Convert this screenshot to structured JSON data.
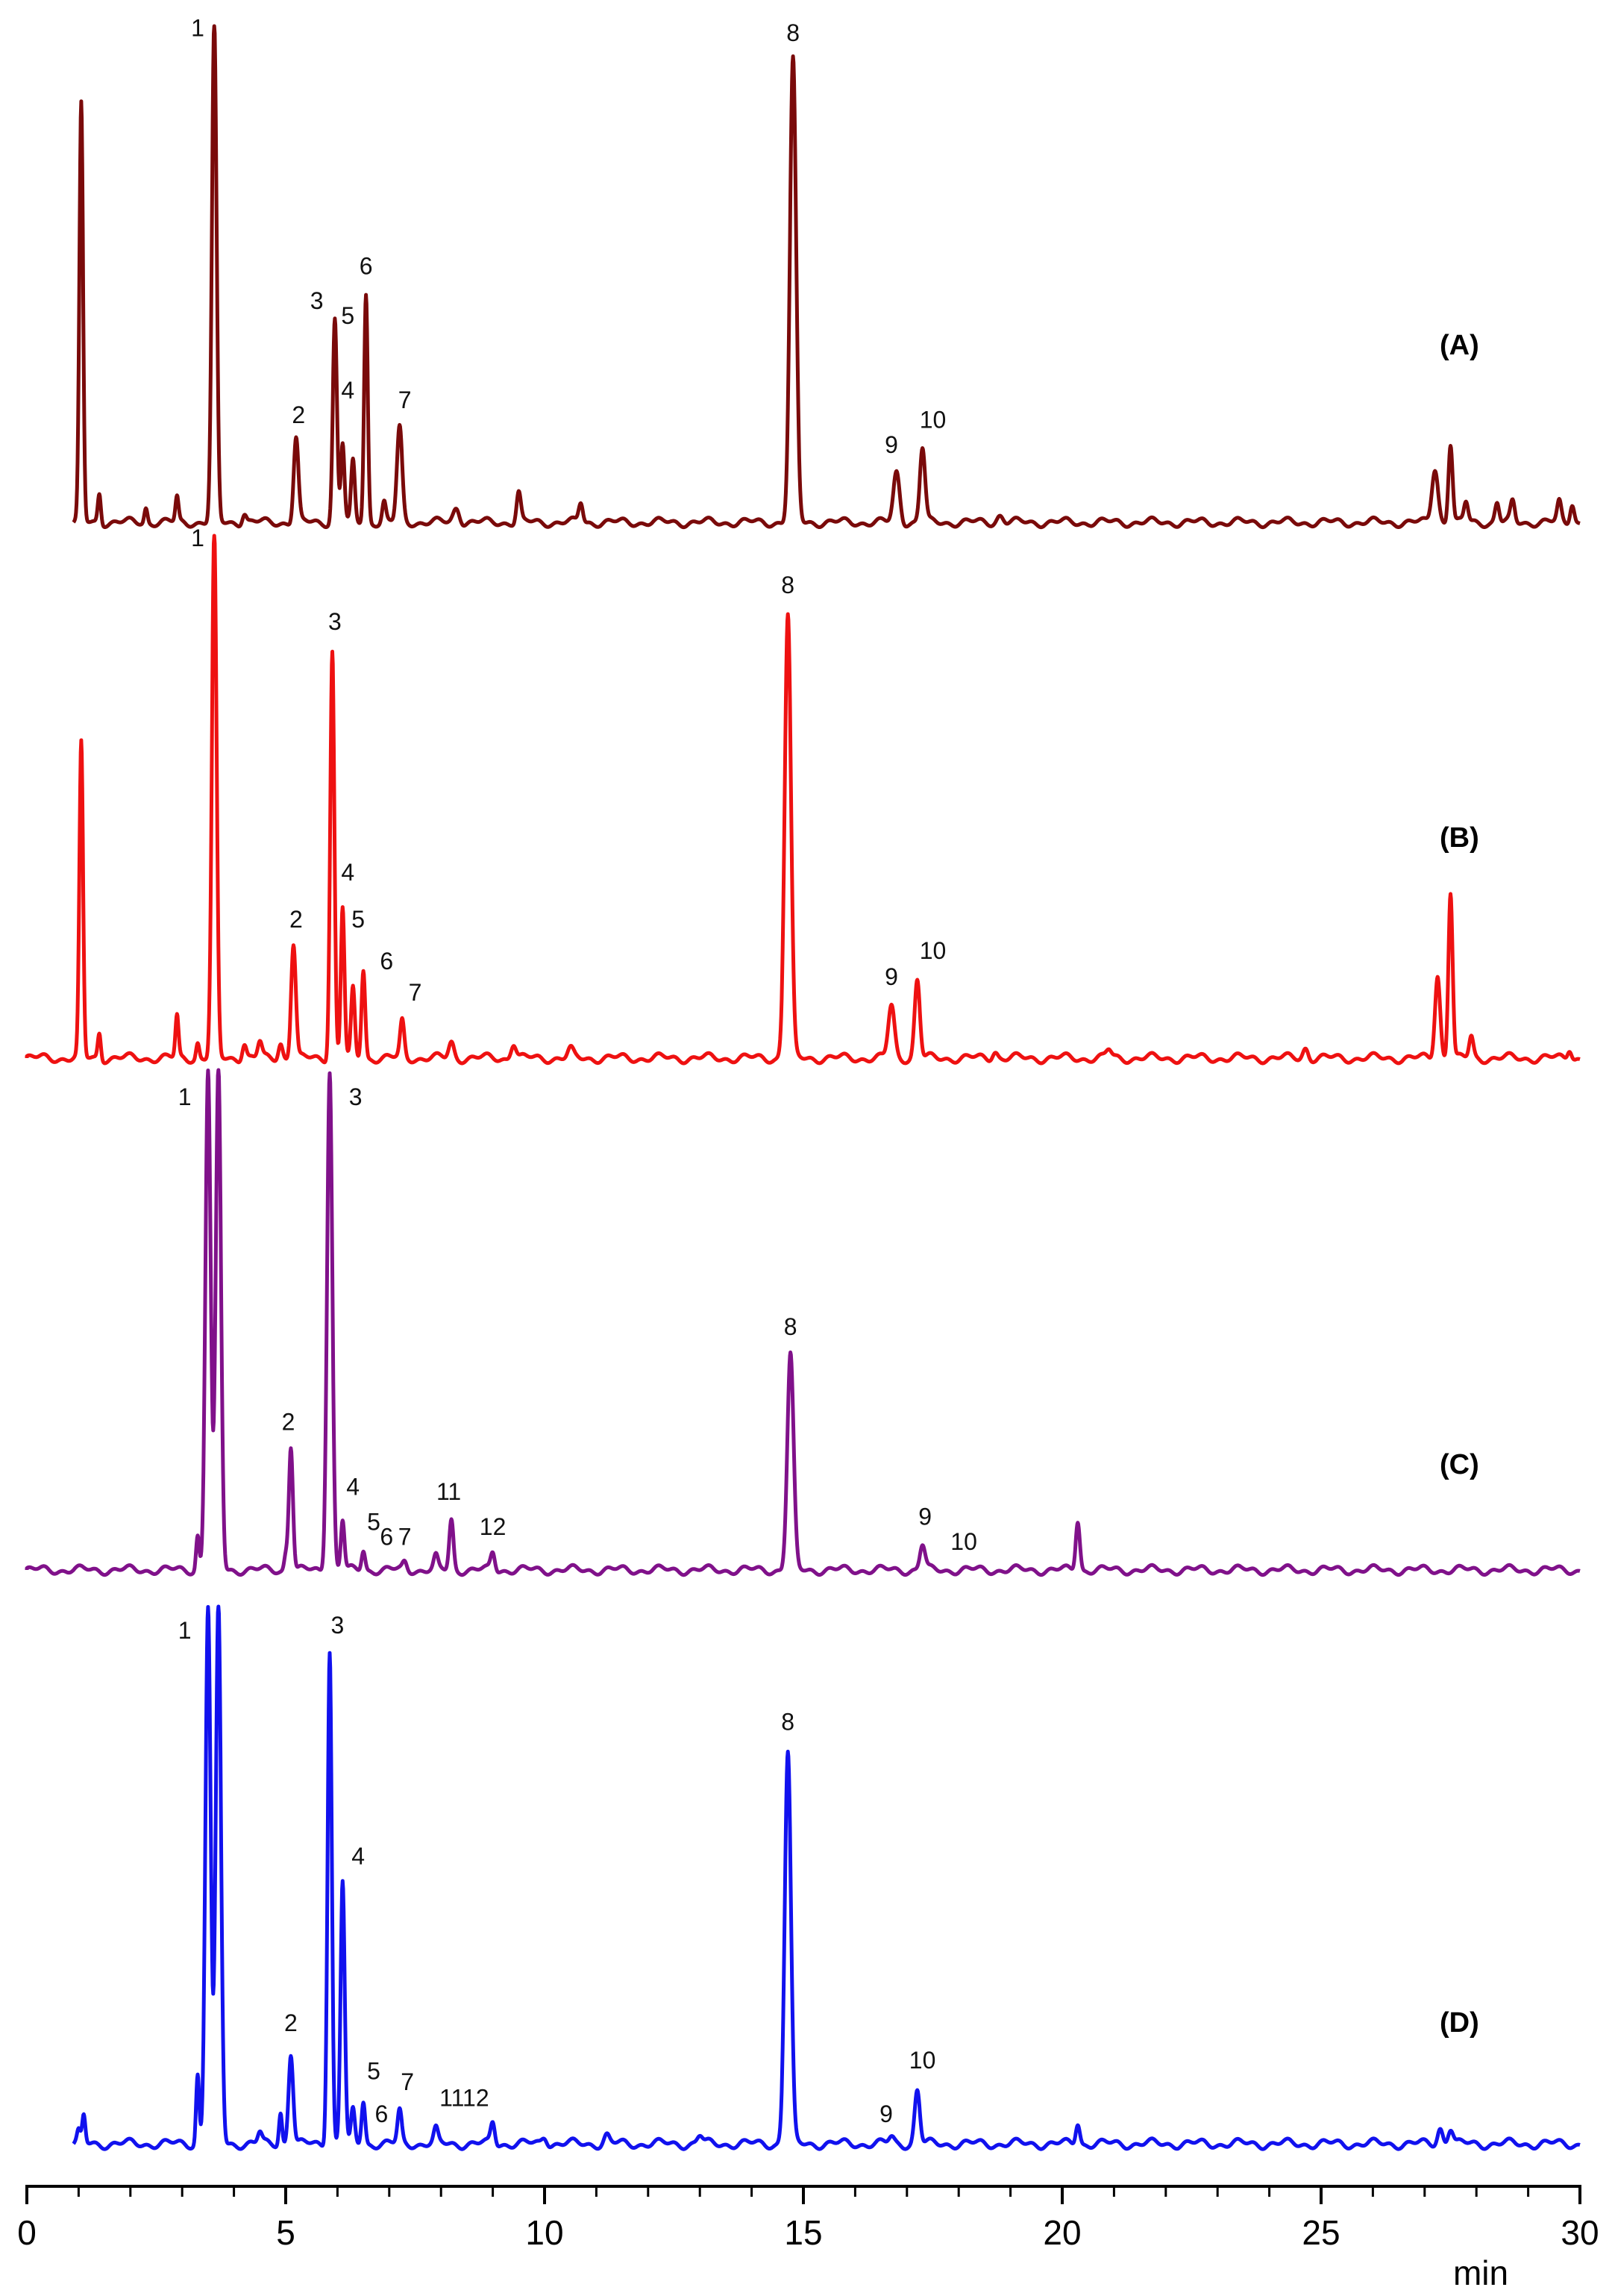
{
  "chart_data": {
    "type": "line",
    "xlabel": "min",
    "xlim": [
      0,
      30
    ],
    "x_ticks": [
      0,
      5,
      10,
      15,
      20,
      25,
      30
    ],
    "grid": false,
    "series": [
      {
        "name": "(A)",
        "color": "#7a0a0a",
        "peaks": [
          {
            "rt": 1.05,
            "h": 0.84,
            "w": 0.035
          },
          {
            "rt": 1.4,
            "h": 0.06,
            "w": 0.03
          },
          {
            "rt": 2.3,
            "h": 0.03,
            "w": 0.03
          },
          {
            "rt": 2.9,
            "h": 0.05,
            "w": 0.03
          },
          {
            "rt": 3.62,
            "h": 1.0,
            "w": 0.045
          },
          {
            "rt": 4.2,
            "h": 0.02,
            "w": 0.04
          },
          {
            "rt": 5.2,
            "h": 0.17,
            "w": 0.045
          },
          {
            "rt": 5.95,
            "h": 0.41,
            "w": 0.04
          },
          {
            "rt": 6.1,
            "h": 0.16,
            "w": 0.035
          },
          {
            "rt": 6.3,
            "h": 0.12,
            "w": 0.035
          },
          {
            "rt": 6.55,
            "h": 0.46,
            "w": 0.035
          },
          {
            "rt": 6.9,
            "h": 0.04,
            "w": 0.035
          },
          {
            "rt": 7.2,
            "h": 0.19,
            "w": 0.05
          },
          {
            "rt": 8.3,
            "h": 0.03,
            "w": 0.06
          },
          {
            "rt": 9.5,
            "h": 0.06,
            "w": 0.04
          },
          {
            "rt": 10.7,
            "h": 0.04,
            "w": 0.04
          },
          {
            "rt": 14.8,
            "h": 0.93,
            "w": 0.06
          },
          {
            "rt": 16.8,
            "h": 0.1,
            "w": 0.06
          },
          {
            "rt": 17.3,
            "h": 0.15,
            "w": 0.05
          },
          {
            "rt": 18.8,
            "h": 0.015,
            "w": 0.06
          },
          {
            "rt": 27.2,
            "h": 0.11,
            "w": 0.06
          },
          {
            "rt": 27.5,
            "h": 0.16,
            "w": 0.04
          },
          {
            "rt": 27.8,
            "h": 0.04,
            "w": 0.04
          },
          {
            "rt": 28.4,
            "h": 0.04,
            "w": 0.04
          },
          {
            "rt": 28.7,
            "h": 0.04,
            "w": 0.04
          },
          {
            "rt": 29.6,
            "h": 0.04,
            "w": 0.04
          },
          {
            "rt": 29.85,
            "h": 0.04,
            "w": 0.04
          }
        ],
        "labels": [
          {
            "text": "1",
            "rt": 3.3,
            "h": 0.98
          },
          {
            "text": "2",
            "rt": 5.25,
            "h": 0.2
          },
          {
            "text": "3",
            "rt": 5.6,
            "h": 0.43
          },
          {
            "text": "5",
            "rt": 6.2,
            "h": 0.4
          },
          {
            "text": "6",
            "rt": 6.55,
            "h": 0.5
          },
          {
            "text": "4",
            "rt": 6.2,
            "h": 0.25
          },
          {
            "text": "7",
            "rt": 7.3,
            "h": 0.23
          },
          {
            "text": "8",
            "rt": 14.8,
            "h": 0.97
          },
          {
            "text": "9",
            "rt": 16.7,
            "h": 0.14
          },
          {
            "text": "10",
            "rt": 17.5,
            "h": 0.19
          }
        ],
        "panel_label": "(A)"
      },
      {
        "name": "(B)",
        "color": "#ee1111",
        "peaks": [
          {
            "rt": 1.05,
            "h": 0.6,
            "w": 0.035
          },
          {
            "rt": 1.4,
            "h": 0.05,
            "w": 0.03
          },
          {
            "rt": 2.9,
            "h": 0.08,
            "w": 0.03
          },
          {
            "rt": 3.3,
            "h": 0.03,
            "w": 0.03
          },
          {
            "rt": 3.62,
            "h": 1.0,
            "w": 0.045
          },
          {
            "rt": 4.2,
            "h": 0.03,
            "w": 0.04
          },
          {
            "rt": 4.5,
            "h": 0.03,
            "w": 0.04
          },
          {
            "rt": 4.9,
            "h": 0.03,
            "w": 0.04
          },
          {
            "rt": 5.15,
            "h": 0.22,
            "w": 0.045
          },
          {
            "rt": 5.9,
            "h": 0.78,
            "w": 0.04
          },
          {
            "rt": 6.1,
            "h": 0.29,
            "w": 0.035
          },
          {
            "rt": 6.3,
            "h": 0.13,
            "w": 0.035
          },
          {
            "rt": 6.5,
            "h": 0.17,
            "w": 0.035
          },
          {
            "rt": 7.25,
            "h": 0.07,
            "w": 0.04
          },
          {
            "rt": 8.2,
            "h": 0.03,
            "w": 0.05
          },
          {
            "rt": 9.4,
            "h": 0.03,
            "w": 0.05
          },
          {
            "rt": 10.5,
            "h": 0.015,
            "w": 0.05
          },
          {
            "rt": 14.7,
            "h": 0.85,
            "w": 0.06
          },
          {
            "rt": 16.7,
            "h": 0.1,
            "w": 0.06
          },
          {
            "rt": 17.2,
            "h": 0.15,
            "w": 0.05
          },
          {
            "rt": 18.7,
            "h": 0.015,
            "w": 0.05
          },
          {
            "rt": 20.9,
            "h": 0.015,
            "w": 0.05
          },
          {
            "rt": 24.7,
            "h": 0.02,
            "w": 0.05
          },
          {
            "rt": 27.25,
            "h": 0.16,
            "w": 0.05
          },
          {
            "rt": 27.5,
            "h": 0.32,
            "w": 0.04
          },
          {
            "rt": 27.9,
            "h": 0.04,
            "w": 0.04
          },
          {
            "rt": 29.8,
            "h": 0.02,
            "w": 0.04
          }
        ],
        "labels": [
          {
            "text": "1",
            "rt": 3.3,
            "h": 0.98
          },
          {
            "text": "3",
            "rt": 5.95,
            "h": 0.82
          },
          {
            "text": "2",
            "rt": 5.2,
            "h": 0.25
          },
          {
            "text": "4",
            "rt": 6.2,
            "h": 0.34
          },
          {
            "text": "5",
            "rt": 6.4,
            "h": 0.25
          },
          {
            "text": "6",
            "rt": 6.95,
            "h": 0.17
          },
          {
            "text": "7",
            "rt": 7.5,
            "h": 0.11
          },
          {
            "text": "8",
            "rt": 14.7,
            "h": 0.89
          },
          {
            "text": "9",
            "rt": 16.7,
            "h": 0.14
          },
          {
            "text": "10",
            "rt": 17.5,
            "h": 0.19
          }
        ],
        "panel_label": "(B)"
      },
      {
        "name": "(C)",
        "color": "#80118a",
        "peaks": [
          {
            "rt": 3.3,
            "h": 0.07,
            "w": 0.03
          },
          {
            "rt": 3.5,
            "h": 1.0,
            "w": 0.05
          },
          {
            "rt": 3.7,
            "h": 1.0,
            "w": 0.05
          },
          {
            "rt": 5.0,
            "h": 0.03,
            "w": 0.03
          },
          {
            "rt": 5.1,
            "h": 0.25,
            "w": 0.04
          },
          {
            "rt": 5.85,
            "h": 1.0,
            "w": 0.05
          },
          {
            "rt": 6.1,
            "h": 0.1,
            "w": 0.035
          },
          {
            "rt": 6.5,
            "h": 0.04,
            "w": 0.035
          },
          {
            "rt": 7.3,
            "h": 0.015,
            "w": 0.04
          },
          {
            "rt": 7.9,
            "h": 0.025,
            "w": 0.04
          },
          {
            "rt": 8.2,
            "h": 0.1,
            "w": 0.04
          },
          {
            "rt": 9.0,
            "h": 0.035,
            "w": 0.04
          },
          {
            "rt": 14.75,
            "h": 0.43,
            "w": 0.06
          },
          {
            "rt": 17.3,
            "h": 0.05,
            "w": 0.05
          },
          {
            "rt": 20.3,
            "h": 0.1,
            "w": 0.04
          }
        ],
        "labels": [
          {
            "text": "1",
            "rt": 3.05,
            "h": 0.93
          },
          {
            "text": "3",
            "rt": 6.35,
            "h": 0.93
          },
          {
            "text": "2",
            "rt": 5.05,
            "h": 0.28
          },
          {
            "text": "4",
            "rt": 6.3,
            "h": 0.15
          },
          {
            "text": "5",
            "rt": 6.7,
            "h": 0.08
          },
          {
            "text": "6",
            "rt": 6.95,
            "h": 0.05
          },
          {
            "text": "7",
            "rt": 7.3,
            "h": 0.05
          },
          {
            "text": "11",
            "rt": 8.15,
            "h": 0.14
          },
          {
            "text": "12",
            "rt": 9.0,
            "h": 0.07
          },
          {
            "text": "8",
            "rt": 14.75,
            "h": 0.47
          },
          {
            "text": "9",
            "rt": 17.35,
            "h": 0.09
          },
          {
            "text": "10",
            "rt": 18.1,
            "h": 0.04
          }
        ],
        "panel_label": "(C)"
      },
      {
        "name": "(D)",
        "color": "#1111ee",
        "peaks": [
          {
            "rt": 1.0,
            "h": 0.02,
            "w": 0.03
          },
          {
            "rt": 1.1,
            "h": 0.05,
            "w": 0.03
          },
          {
            "rt": 3.3,
            "h": 0.13,
            "w": 0.03
          },
          {
            "rt": 3.5,
            "h": 1.0,
            "w": 0.05
          },
          {
            "rt": 3.7,
            "h": 1.0,
            "w": 0.05
          },
          {
            "rt": 4.5,
            "h": 0.02,
            "w": 0.04
          },
          {
            "rt": 4.9,
            "h": 0.06,
            "w": 0.03
          },
          {
            "rt": 5.1,
            "h": 0.17,
            "w": 0.045
          },
          {
            "rt": 5.85,
            "h": 0.92,
            "w": 0.04
          },
          {
            "rt": 6.1,
            "h": 0.49,
            "w": 0.04
          },
          {
            "rt": 6.3,
            "h": 0.06,
            "w": 0.035
          },
          {
            "rt": 6.5,
            "h": 0.08,
            "w": 0.035
          },
          {
            "rt": 7.2,
            "h": 0.06,
            "w": 0.04
          },
          {
            "rt": 7.9,
            "h": 0.025,
            "w": 0.04
          },
          {
            "rt": 9.0,
            "h": 0.04,
            "w": 0.04
          },
          {
            "rt": 10.0,
            "h": 0.015,
            "w": 0.05
          },
          {
            "rt": 11.2,
            "h": 0.015,
            "w": 0.05
          },
          {
            "rt": 13.0,
            "h": 0.015,
            "w": 0.05
          },
          {
            "rt": 14.7,
            "h": 0.73,
            "w": 0.06
          },
          {
            "rt": 16.7,
            "h": 0.012,
            "w": 0.05
          },
          {
            "rt": 17.2,
            "h": 0.1,
            "w": 0.05
          },
          {
            "rt": 20.3,
            "h": 0.04,
            "w": 0.04
          },
          {
            "rt": 27.3,
            "h": 0.03,
            "w": 0.05
          },
          {
            "rt": 27.5,
            "h": 0.03,
            "w": 0.05
          }
        ],
        "labels": [
          {
            "text": "1",
            "rt": 3.05,
            "h": 0.94
          },
          {
            "text": "3",
            "rt": 6.0,
            "h": 0.95
          },
          {
            "text": "4",
            "rt": 6.4,
            "h": 0.52
          },
          {
            "text": "2",
            "rt": 5.1,
            "h": 0.21
          },
          {
            "text": "5",
            "rt": 6.7,
            "h": 0.12
          },
          {
            "text": "6",
            "rt": 6.85,
            "h": 0.04
          },
          {
            "text": "7",
            "rt": 7.35,
            "h": 0.1
          },
          {
            "text": "1112",
            "rt": 8.45,
            "h": 0.07
          },
          {
            "text": "8",
            "rt": 14.7,
            "h": 0.77
          },
          {
            "text": "9",
            "rt": 16.6,
            "h": 0.04
          },
          {
            "text": "10",
            "rt": 17.3,
            "h": 0.14
          }
        ],
        "panel_label": "(D)"
      }
    ]
  }
}
